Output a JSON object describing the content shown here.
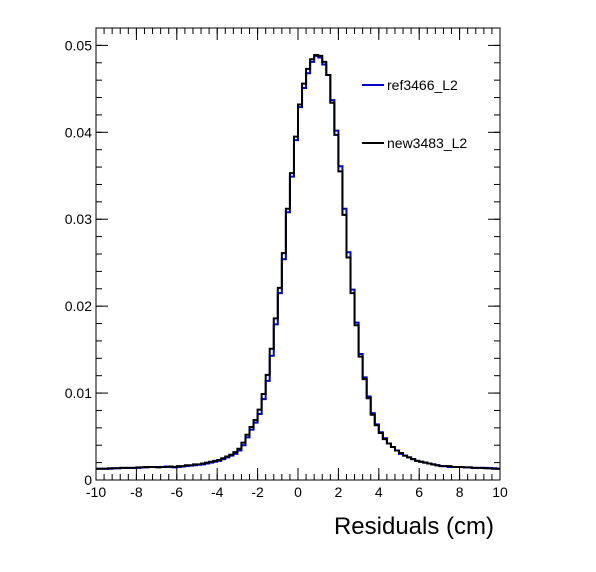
{
  "chart_data": {
    "type": "line",
    "xlabel": "Residuals (cm)",
    "ylabel": "",
    "xlim": [
      -10,
      10
    ],
    "ylim": [
      0,
      0.052
    ],
    "x_ticks": [
      -10,
      -8,
      -6,
      -4,
      -2,
      0,
      2,
      4,
      6,
      8,
      10
    ],
    "x_tick_labels": [
      "-10",
      "-8",
      "-6",
      "-4",
      "-2",
      "0",
      "2",
      "4",
      "6",
      "8",
      "10"
    ],
    "y_ticks": [
      0,
      0.01,
      0.02,
      0.03,
      0.04,
      0.05
    ],
    "y_tick_labels": [
      "0",
      "0.01",
      "0.02",
      "0.03",
      "0.04",
      "0.05"
    ],
    "grid": false,
    "legend_position": "top-right",
    "bin_edges_range": [
      -10,
      10
    ],
    "bin_width": 0.2,
    "series": [
      {
        "name": "ref3466_L2",
        "color": "#0000cc",
        "values": [
          0.0013,
          0.0013,
          0.0013,
          0.0013,
          0.00135,
          0.00135,
          0.0014,
          0.0014,
          0.0014,
          0.0014,
          0.0014,
          0.00145,
          0.00145,
          0.0015,
          0.0015,
          0.0015,
          0.0015,
          0.00155,
          0.0015,
          0.00145,
          0.0015,
          0.00155,
          0.0016,
          0.00165,
          0.0017,
          0.00175,
          0.0018,
          0.0019,
          0.002,
          0.0021,
          0.0022,
          0.0024,
          0.0026,
          0.0028,
          0.003,
          0.0034,
          0.004,
          0.0049,
          0.0058,
          0.0066,
          0.0076,
          0.0093,
          0.0114,
          0.0143,
          0.0179,
          0.0215,
          0.0254,
          0.0308,
          0.0349,
          0.0391,
          0.0429,
          0.0451,
          0.0468,
          0.0481,
          0.0488,
          0.0486,
          0.0478,
          0.0466,
          0.0437,
          0.0402,
          0.0361,
          0.0312,
          0.0262,
          0.0219,
          0.0181,
          0.0145,
          0.0118,
          0.0096,
          0.0077,
          0.0064,
          0.0055,
          0.0048,
          0.0042,
          0.0038,
          0.0034,
          0.003,
          0.0028,
          0.0026,
          0.0024,
          0.0022,
          0.0021,
          0.002,
          0.0019,
          0.0018,
          0.0017,
          0.0016,
          0.0016,
          0.0015,
          0.0015,
          0.0015,
          0.0015,
          0.00145,
          0.00145,
          0.0014,
          0.0014,
          0.0014,
          0.0014,
          0.00135,
          0.00135,
          0.0013
        ]
      },
      {
        "name": "new3483_L2",
        "color": "#000000",
        "values": [
          0.0013,
          0.0013,
          0.0013,
          0.00135,
          0.00135,
          0.00135,
          0.0014,
          0.0014,
          0.0014,
          0.0014,
          0.00145,
          0.00145,
          0.0015,
          0.0015,
          0.0015,
          0.00145,
          0.0015,
          0.0015,
          0.00155,
          0.0015,
          0.0016,
          0.0016,
          0.0017,
          0.0017,
          0.0018,
          0.0018,
          0.0019,
          0.002,
          0.0021,
          0.0022,
          0.0023,
          0.0025,
          0.0027,
          0.0029,
          0.0032,
          0.0036,
          0.0043,
          0.0052,
          0.0061,
          0.0069,
          0.0081,
          0.0099,
          0.0121,
          0.0151,
          0.0186,
          0.0221,
          0.0261,
          0.0312,
          0.0353,
          0.0395,
          0.0432,
          0.0456,
          0.0473,
          0.0484,
          0.0489,
          0.0488,
          0.0481,
          0.0466,
          0.0434,
          0.0397,
          0.0355,
          0.0305,
          0.0256,
          0.0215,
          0.0178,
          0.0142,
          0.0116,
          0.0094,
          0.0075,
          0.0063,
          0.0054,
          0.0047,
          0.0042,
          0.0038,
          0.0034,
          0.0031,
          0.0028,
          0.0026,
          0.0024,
          0.0022,
          0.0021,
          0.002,
          0.0019,
          0.0018,
          0.0017,
          0.0016,
          0.0016,
          0.0016,
          0.0015,
          0.0015,
          0.0015,
          0.00145,
          0.00145,
          0.0014,
          0.0014,
          0.0014,
          0.00135,
          0.00135,
          0.0013,
          0.0013
        ]
      }
    ]
  }
}
